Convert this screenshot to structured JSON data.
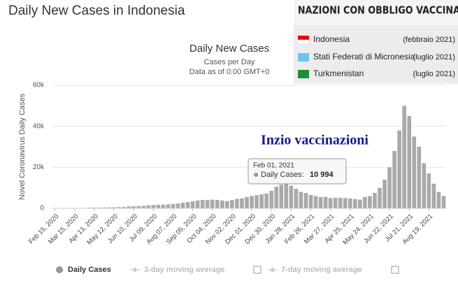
{
  "header": {
    "title": "Daily New Cases in Indonesia"
  },
  "inset": {
    "title": "NAZIONI CON OBBLIGO VACCINALE",
    "rows": [
      [
        "Indonesia",
        "(febbraio 2021)"
      ],
      [
        "Stati Federati di Micronesia",
        "(luglio 2021)"
      ],
      [
        "Turkmenistan",
        "(luglio 2021)"
      ]
    ]
  },
  "tooltip": {
    "date": "Feb 01, 2021",
    "label": "Daily Cases:",
    "value": 10994,
    "value_label": "10 994"
  },
  "legend_extra": [
    "3-day moving average",
    "7-day moving average"
  ],
  "chart_data": {
    "type": "bar",
    "title": "Daily New Cases",
    "subtitle": "Cases per Day",
    "note": "Data as of 0:00 GMT+0",
    "annotation": "Inzio vaccinazioni",
    "y_label": "Novel Coronavirus Daily Cases",
    "series": [
      {
        "name": "Daily Cases",
        "color": "#a9a9a9",
        "values": [
          0,
          0,
          0,
          20,
          50,
          100,
          150,
          300,
          330,
          350,
          400,
          480,
          500,
          600,
          650,
          900,
          1000,
          1100,
          1200,
          1500,
          1600,
          1700,
          1800,
          1900,
          2100,
          2300,
          2700,
          3100,
          3400,
          3800,
          4100,
          4000,
          4200,
          4100,
          3800,
          3500,
          4000,
          4600,
          4800,
          5500,
          6000,
          6400,
          6800,
          7200,
          8500,
          10500,
          11500,
          12500,
          11000,
          9500,
          8000,
          7500,
          6500,
          6000,
          5500,
          5600,
          5000,
          5200,
          5100,
          5000,
          4800,
          4500,
          4200,
          5500,
          6000,
          7500,
          10000,
          14000,
          20000,
          28000,
          38000,
          50000,
          45000,
          35000,
          30000,
          22000,
          17000,
          12000,
          8000,
          6000
        ]
      }
    ],
    "xlim": [
      0,
      80
    ],
    "xticks": [
      {
        "value": 0,
        "label": "Feb 15, 2020"
      },
      {
        "value": 4,
        "label": "Mar 15, 2020"
      },
      {
        "value": 8,
        "label": "Apr 13, 2020"
      },
      {
        "value": 12,
        "label": "May 12, 2020"
      },
      {
        "value": 16,
        "label": "Jun 10, 2020"
      },
      {
        "value": 20,
        "label": "Jul 09, 2020"
      },
      {
        "value": 24,
        "label": "Aug 07, 2020"
      },
      {
        "value": 28,
        "label": "Sep 05, 2020"
      },
      {
        "value": 32,
        "label": "Oct 04, 2020"
      },
      {
        "value": 36,
        "label": "Nov 02, 2020"
      },
      {
        "value": 40,
        "label": "Dec 01, 2020"
      },
      {
        "value": 44,
        "label": "Dec 30, 2020"
      },
      {
        "value": 48,
        "label": "Jan 28, 2021"
      },
      {
        "value": 52,
        "label": "Feb 26, 2021"
      },
      {
        "value": 56,
        "label": "Mar 27, 2021"
      },
      {
        "value": 60,
        "label": "Apr 25, 2021"
      },
      {
        "value": 64,
        "label": "May 24, 2021"
      },
      {
        "value": 68,
        "label": "Jun 22, 2021"
      },
      {
        "value": 72,
        "label": "Jul 21, 2021"
      },
      {
        "value": 76,
        "label": "Aug 19, 2021"
      }
    ],
    "ylim": [
      0,
      60000
    ],
    "yticks": [
      0,
      {
        "value": 20000,
        "label": "20k"
      },
      {
        "value": 40000,
        "label": "40k"
      },
      {
        "value": 60000,
        "label": "60k"
      }
    ],
    "grid": true
  }
}
